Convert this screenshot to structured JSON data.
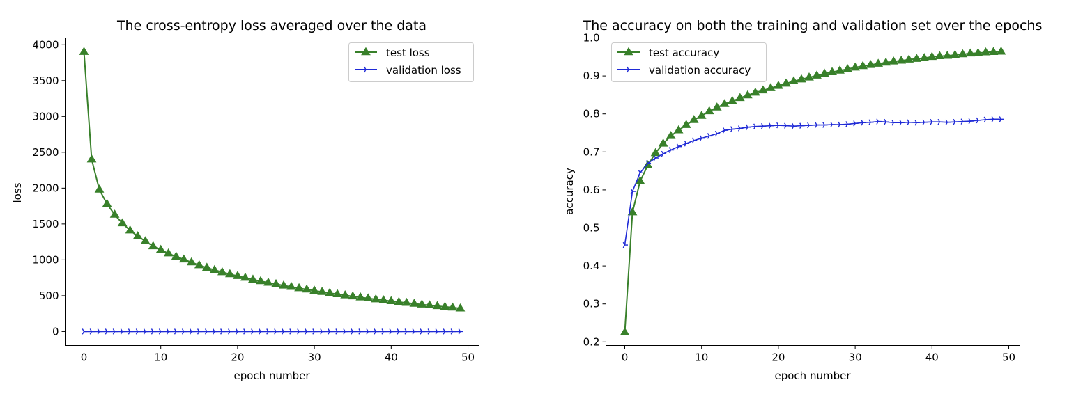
{
  "chart_data": [
    {
      "type": "line",
      "title": "The cross-entropy loss averaged over the data",
      "xlabel": "epoch number",
      "ylabel": "loss",
      "xlim": [
        -2.45,
        51.45
      ],
      "ylim": [
        -195,
        4095
      ],
      "xticks": [
        0,
        10,
        20,
        30,
        40,
        50
      ],
      "yticks": [
        0,
        500,
        1000,
        1500,
        2000,
        2500,
        3000,
        3500,
        4000
      ],
      "grid": false,
      "legend_position": "upper right",
      "series": [
        {
          "name": "test loss",
          "color": "#38802a",
          "marker": "triangle",
          "x": [
            0,
            1,
            2,
            3,
            4,
            5,
            6,
            7,
            8,
            9,
            10,
            11,
            12,
            13,
            14,
            15,
            16,
            17,
            18,
            19,
            20,
            21,
            22,
            23,
            24,
            25,
            26,
            27,
            28,
            29,
            30,
            31,
            32,
            33,
            34,
            35,
            36,
            37,
            38,
            39,
            40,
            41,
            42,
            43,
            44,
            45,
            46,
            47,
            48,
            49
          ],
          "values": [
            3900,
            2400,
            1980,
            1780,
            1630,
            1510,
            1410,
            1330,
            1260,
            1190,
            1140,
            1090,
            1045,
            1005,
            965,
            925,
            890,
            858,
            828,
            800,
            775,
            750,
            725,
            703,
            682,
            662,
            642,
            623,
            605,
            587,
            570,
            553,
            537,
            521,
            506,
            491,
            477,
            463,
            450,
            437,
            424,
            412,
            400,
            388,
            377,
            366,
            355,
            345,
            335,
            322
          ]
        },
        {
          "name": "validation loss",
          "color": "#1f2ad6",
          "marker": "tri_right",
          "x": [
            0,
            1,
            2,
            3,
            4,
            5,
            6,
            7,
            8,
            9,
            10,
            11,
            12,
            13,
            14,
            15,
            16,
            17,
            18,
            19,
            20,
            21,
            22,
            23,
            24,
            25,
            26,
            27,
            28,
            29,
            30,
            31,
            32,
            33,
            34,
            35,
            36,
            37,
            38,
            39,
            40,
            41,
            42,
            43,
            44,
            45,
            46,
            47,
            48,
            49
          ],
          "values": [
            0,
            0,
            0,
            0,
            0,
            0,
            0,
            0,
            0,
            0,
            0,
            0,
            0,
            0,
            0,
            0,
            0,
            0,
            0,
            0,
            0,
            0,
            0,
            0,
            0,
            0,
            0,
            0,
            0,
            0,
            0,
            0,
            0,
            0,
            0,
            0,
            0,
            0,
            0,
            0,
            0,
            0,
            0,
            0,
            0,
            0,
            0,
            0,
            0,
            0
          ]
        }
      ]
    },
    {
      "type": "line",
      "title": "The accuracy on both the training and validation set over the epochs",
      "xlabel": "epoch number",
      "ylabel": "accuracy",
      "xlim": [
        -2.45,
        51.45
      ],
      "ylim": [
        0.1905,
        1.0
      ],
      "xticks": [
        0,
        10,
        20,
        30,
        40,
        50
      ],
      "yticks": [
        0.2,
        0.3,
        0.4,
        0.5,
        0.6,
        0.7,
        0.8,
        0.9,
        1.0
      ],
      "grid": false,
      "legend_position": "upper left",
      "series": [
        {
          "name": "test accuracy",
          "color": "#38802a",
          "marker": "triangle",
          "x": [
            0,
            1,
            2,
            3,
            4,
            5,
            6,
            7,
            8,
            9,
            10,
            11,
            12,
            13,
            14,
            15,
            16,
            17,
            18,
            19,
            20,
            21,
            22,
            23,
            24,
            25,
            26,
            27,
            28,
            29,
            30,
            31,
            32,
            33,
            34,
            35,
            36,
            37,
            38,
            39,
            40,
            41,
            42,
            43,
            44,
            45,
            46,
            47,
            48,
            49
          ],
          "values": [
            0.225,
            0.541,
            0.623,
            0.665,
            0.697,
            0.722,
            0.742,
            0.757,
            0.771,
            0.784,
            0.795,
            0.807,
            0.817,
            0.826,
            0.834,
            0.842,
            0.849,
            0.856,
            0.862,
            0.868,
            0.874,
            0.88,
            0.886,
            0.891,
            0.896,
            0.901,
            0.906,
            0.91,
            0.914,
            0.918,
            0.922,
            0.926,
            0.929,
            0.932,
            0.935,
            0.938,
            0.94,
            0.943,
            0.945,
            0.947,
            0.95,
            0.952,
            0.953,
            0.955,
            0.957,
            0.959,
            0.96,
            0.962,
            0.963,
            0.964
          ]
        },
        {
          "name": "validation accuracy",
          "color": "#1f2ad6",
          "marker": "tri_right",
          "x": [
            0,
            1,
            2,
            3,
            4,
            5,
            6,
            7,
            8,
            9,
            10,
            11,
            12,
            13,
            14,
            15,
            16,
            17,
            18,
            19,
            20,
            21,
            22,
            23,
            24,
            25,
            26,
            27,
            28,
            29,
            30,
            31,
            32,
            33,
            34,
            35,
            36,
            37,
            38,
            39,
            40,
            41,
            42,
            43,
            44,
            45,
            46,
            47,
            48,
            49
          ],
          "values": [
            0.455,
            0.596,
            0.645,
            0.67,
            0.684,
            0.695,
            0.705,
            0.714,
            0.722,
            0.73,
            0.736,
            0.742,
            0.748,
            0.757,
            0.76,
            0.762,
            0.765,
            0.767,
            0.768,
            0.769,
            0.77,
            0.769,
            0.768,
            0.769,
            0.77,
            0.771,
            0.771,
            0.772,
            0.772,
            0.773,
            0.775,
            0.777,
            0.778,
            0.78,
            0.779,
            0.777,
            0.777,
            0.778,
            0.777,
            0.778,
            0.779,
            0.779,
            0.778,
            0.779,
            0.78,
            0.781,
            0.783,
            0.785,
            0.786,
            0.786
          ]
        }
      ]
    }
  ]
}
